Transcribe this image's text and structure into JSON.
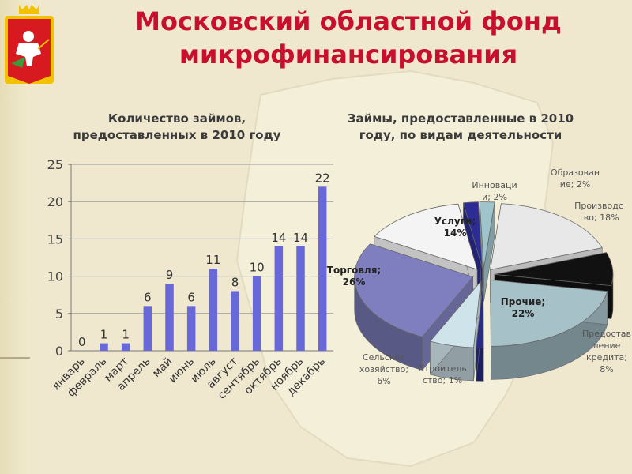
{
  "slide": {
    "title_line1": "Московский областной фонд",
    "title_line2": "микрофинансирования"
  },
  "colors": {
    "title": "#c8102e",
    "bar": "#6868d8",
    "emblem_red": "#d71920",
    "emblem_gold": "#f2c200"
  },
  "chart_data": [
    {
      "type": "bar",
      "title_line1": "Количество займов,",
      "title_line2": "предоставленных в 2010 году",
      "categories": [
        "январь",
        "февраль",
        "март",
        "апрель",
        "май",
        "июнь",
        "июль",
        "август",
        "сентябрь",
        "октябрь",
        "ноябрь",
        "декабрь"
      ],
      "values": [
        0,
        1,
        1,
        6,
        9,
        6,
        11,
        8,
        10,
        14,
        14,
        22
      ],
      "ylim": [
        0,
        25
      ],
      "yticks": [
        0,
        5,
        10,
        15,
        20,
        25
      ],
      "grid": true,
      "data_labels": true
    },
    {
      "type": "pie",
      "style": "3d-exploded",
      "title_line1": "Займы, предоставленные в 2010",
      "title_line2": "году, по видам деятельности",
      "slices": [
        {
          "label_lines": [
            "Образован",
            "ие; 2%"
          ],
          "value": 2,
          "color": "#9fc4cc"
        },
        {
          "label_lines": [
            "Производс",
            "тво; 18%"
          ],
          "value": 18,
          "color": "#e8e8e8"
        },
        {
          "label_lines": [
            "Предостав",
            "ление",
            "кредита;",
            "8%"
          ],
          "value": 8,
          "color": "#111111"
        },
        {
          "label_lines": [
            "Прочие;",
            "22%"
          ],
          "value": 22,
          "color": "#a6c1c8"
        },
        {
          "label_lines": [
            "Строитель",
            "ство; 1%"
          ],
          "value": 1,
          "color": "#2a2a8a"
        },
        {
          "label_lines": [
            "Сельское",
            "хозяйство;",
            "6%"
          ],
          "value": 6,
          "color": "#cfe3ea"
        },
        {
          "label_lines": [
            "Торговля;",
            "26%"
          ],
          "value": 26,
          "color": "#7f7fbf"
        },
        {
          "label_lines": [
            "Услуги;",
            "14%"
          ],
          "value": 14,
          "color": "#f4f4f4"
        },
        {
          "label_lines": [
            "Инноваци",
            "и; 2%"
          ],
          "value": 2,
          "color": "#2c2c94"
        }
      ]
    }
  ]
}
